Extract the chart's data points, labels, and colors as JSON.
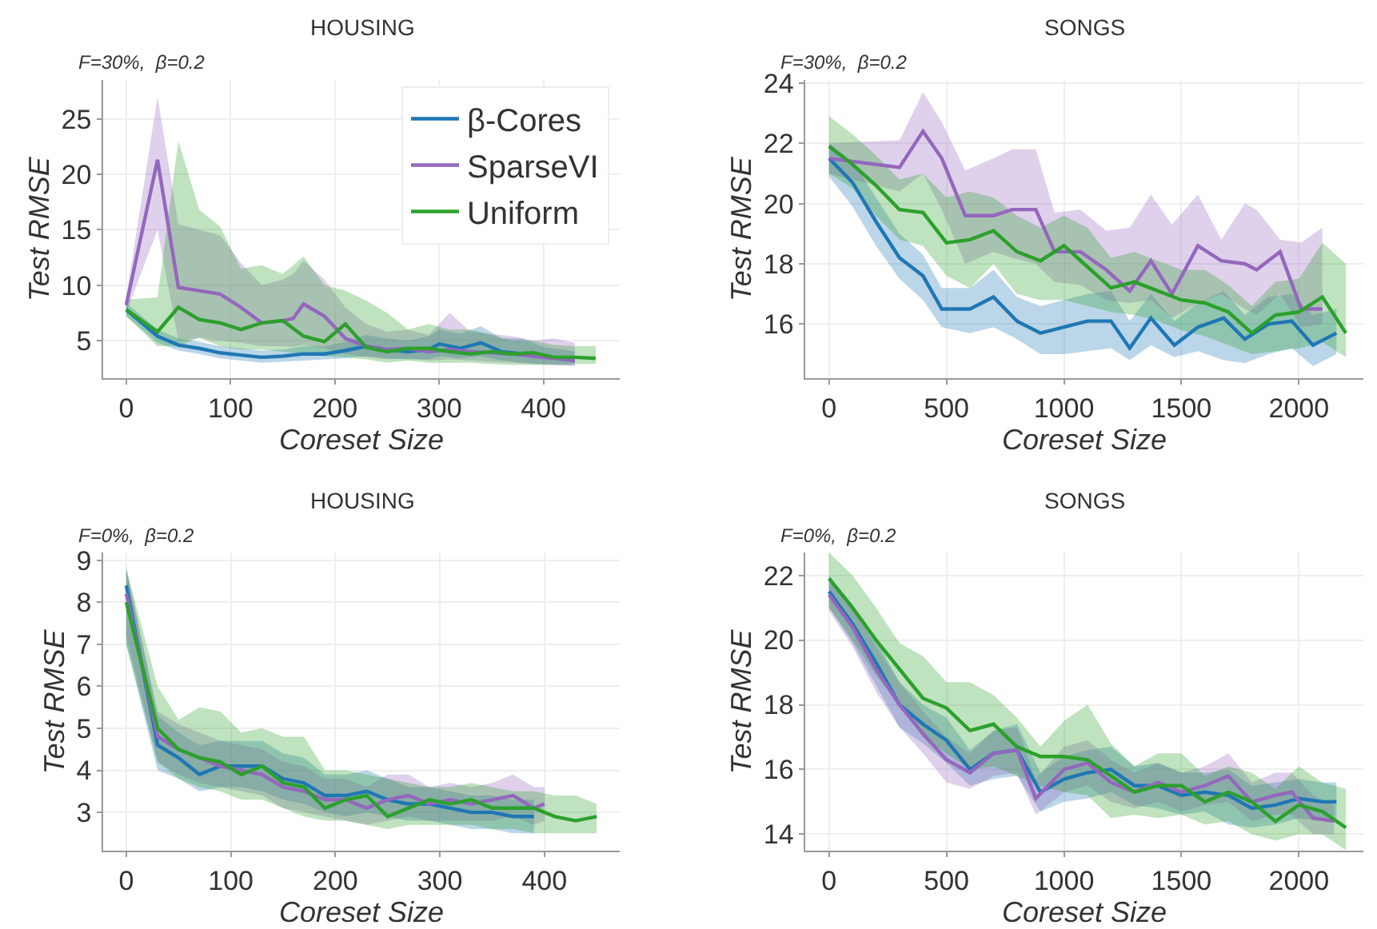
{
  "chart_data": [
    {
      "type": "line",
      "title": "HOUSING",
      "subtitle": "F=30%,  β=0.2",
      "xlabel": "Coreset Size",
      "ylabel": "Test RMSE",
      "xlim": [
        -22,
        473
      ],
      "ylim": [
        1.6,
        28.5
      ],
      "xticks": [
        0,
        100,
        200,
        300,
        400
      ],
      "yticks": [
        5,
        10,
        15,
        20,
        25
      ],
      "grid": true,
      "legend": "top right",
      "marker": "none",
      "line_style": "solid",
      "series": [
        {
          "name": "β-Cores",
          "color": "#1f77b4",
          "x": [
            0,
            30,
            50,
            70,
            90,
            110,
            130,
            150,
            170,
            190,
            210,
            230,
            250,
            270,
            290,
            300,
            320,
            340,
            360,
            380,
            400,
            420,
            430
          ],
          "values": [
            7.8,
            5.4,
            4.6,
            4.3,
            3.9,
            3.7,
            3.5,
            3.6,
            3.8,
            3.8,
            4.1,
            4.5,
            4.2,
            4.0,
            4.2,
            4.7,
            4.3,
            4.8,
            4.0,
            3.8,
            3.5,
            3.4,
            3.3
          ],
          "lower": [
            7.2,
            4.8,
            4.1,
            3.8,
            3.4,
            3.2,
            3.0,
            3.1,
            3.2,
            3.3,
            3.4,
            3.6,
            3.4,
            3.3,
            3.3,
            3.6,
            3.4,
            3.6,
            3.2,
            3.0,
            2.9,
            2.8,
            2.8
          ],
          "upper": [
            8.4,
            6.0,
            5.2,
            4.9,
            4.5,
            4.3,
            4.1,
            4.2,
            4.5,
            4.5,
            4.9,
            5.5,
            5.2,
            5.0,
            5.4,
            6.0,
            5.6,
            6.3,
            5.2,
            5.2,
            4.4,
            4.2,
            4.0
          ]
        },
        {
          "name": "SparseVI",
          "color": "#9467bd",
          "x": [
            0,
            30,
            50,
            70,
            90,
            110,
            130,
            150,
            160,
            170,
            190,
            210,
            230,
            250,
            270,
            290,
            310,
            330,
            350,
            370,
            390,
            410,
            430
          ],
          "values": [
            8.2,
            21.3,
            9.8,
            9.5,
            9.2,
            8.0,
            6.6,
            6.8,
            7.0,
            8.3,
            7.2,
            5.2,
            4.5,
            4.2,
            4.3,
            4.0,
            4.2,
            4.0,
            3.9,
            3.8,
            3.6,
            3.4,
            3.2
          ],
          "lower": [
            7.5,
            15.0,
            5.0,
            5.2,
            5.0,
            4.8,
            4.5,
            4.5,
            4.4,
            4.6,
            4.3,
            3.8,
            3.5,
            3.3,
            3.4,
            3.2,
            3.3,
            3.2,
            3.1,
            3.0,
            2.9,
            2.8,
            2.7
          ],
          "upper": [
            8.9,
            27.0,
            15.5,
            15.0,
            14.5,
            12.0,
            10.0,
            10.5,
            11.0,
            12.2,
            10.5,
            8.0,
            6.5,
            5.8,
            6.0,
            5.5,
            7.5,
            5.8,
            5.6,
            5.4,
            5.0,
            5.2,
            4.8
          ]
        },
        {
          "name": "Uniform",
          "color": "#2ca02c",
          "x": [
            0,
            30,
            50,
            70,
            90,
            110,
            130,
            150,
            170,
            190,
            210,
            230,
            250,
            270,
            290,
            310,
            330,
            350,
            370,
            390,
            410,
            430,
            450
          ],
          "values": [
            7.8,
            5.8,
            8.0,
            6.9,
            6.6,
            6.0,
            6.6,
            6.8,
            5.4,
            4.9,
            6.5,
            4.4,
            4.0,
            4.3,
            4.3,
            4.0,
            3.8,
            4.0,
            3.8,
            3.9,
            3.5,
            3.5,
            3.4
          ],
          "lower": [
            7.2,
            4.5,
            4.5,
            5.3,
            4.5,
            4.2,
            4.2,
            4.0,
            3.8,
            3.6,
            3.5,
            3.3,
            3.0,
            3.2,
            3.0,
            3.0,
            3.0,
            2.9,
            2.8,
            2.8,
            2.8,
            2.9,
            2.9
          ],
          "upper": [
            8.7,
            8.9,
            23.0,
            16.8,
            15.3,
            11.5,
            11.8,
            11.0,
            12.6,
            10.0,
            9.5,
            8.6,
            7.5,
            6.0,
            6.5,
            6.0,
            6.0,
            5.5,
            5.0,
            5.0,
            4.6,
            4.5,
            4.5
          ]
        }
      ]
    },
    {
      "type": "line",
      "title": "SONGS",
      "subtitle": "F=30%,  β=0.2",
      "xlabel": "Coreset Size",
      "ylabel": "Test RMSE",
      "xlim": [
        -100,
        2274
      ],
      "ylim": [
        14.2,
        24.1
      ],
      "xticks": [
        0,
        500,
        1000,
        1500,
        2000
      ],
      "yticks": [
        16,
        18,
        20,
        22,
        24
      ],
      "grid": true,
      "marker": "none",
      "line_style": "solid",
      "series": [
        {
          "color": "#1f77b4",
          "x": [
            0,
            100,
            200,
            300,
            400,
            480,
            600,
            700,
            800,
            900,
            1000,
            1100,
            1200,
            1280,
            1370,
            1470,
            1570,
            1680,
            1770,
            1870,
            1970,
            2060,
            2160
          ],
          "values": [
            21.5,
            20.7,
            19.4,
            18.2,
            17.6,
            16.5,
            16.5,
            16.9,
            16.1,
            15.7,
            15.9,
            16.1,
            16.1,
            15.2,
            16.2,
            15.3,
            15.9,
            16.2,
            15.5,
            16.0,
            16.1,
            15.3,
            15.7
          ],
          "lower": [
            20.9,
            19.9,
            18.6,
            17.5,
            16.8,
            15.9,
            15.7,
            15.9,
            15.5,
            15.0,
            15.0,
            15.1,
            15.2,
            14.8,
            15.3,
            14.9,
            15.1,
            14.8,
            14.7,
            15.0,
            15.2,
            14.6,
            15.0
          ],
          "upper": [
            22.0,
            21.4,
            20.2,
            19.0,
            18.3,
            17.2,
            17.2,
            17.8,
            16.9,
            16.6,
            16.8,
            17.0,
            17.1,
            16.1,
            17.0,
            16.1,
            16.7,
            17.1,
            16.3,
            16.9,
            17.0,
            16.3,
            16.5
          ]
        },
        {
          "color": "#9467bd",
          "x": [
            0,
            300,
            400,
            480,
            580,
            700,
            780,
            880,
            960,
            1070,
            1180,
            1280,
            1370,
            1460,
            1570,
            1670,
            1770,
            1820,
            1920,
            2010,
            2100
          ],
          "values": [
            21.5,
            21.2,
            22.4,
            21.5,
            19.6,
            19.6,
            19.8,
            19.8,
            18.4,
            18.4,
            17.8,
            17.1,
            18.1,
            17.0,
            18.6,
            18.1,
            18.0,
            17.8,
            18.4,
            16.5,
            16.5
          ],
          "lower": [
            21.0,
            20.4,
            21.0,
            19.8,
            18.0,
            18.4,
            18.2,
            18.0,
            17.4,
            17.3,
            16.8,
            16.7,
            16.8,
            16.2,
            16.7,
            17.0,
            16.5,
            16.3,
            17.0,
            15.9,
            16.0
          ],
          "upper": [
            22.0,
            22.1,
            23.7,
            22.7,
            21.1,
            21.5,
            21.8,
            21.8,
            19.7,
            19.8,
            19.1,
            19.2,
            20.3,
            19.3,
            20.3,
            18.8,
            20.0,
            19.8,
            18.8,
            18.7,
            19.2
          ]
        },
        {
          "color": "#2ca02c",
          "x": [
            0,
            100,
            200,
            300,
            400,
            500,
            600,
            700,
            800,
            900,
            1000,
            1100,
            1200,
            1300,
            1400,
            1500,
            1600,
            1700,
            1800,
            1900,
            2000,
            2100,
            2200
          ],
          "values": [
            21.9,
            21.3,
            20.6,
            19.8,
            19.7,
            18.7,
            18.8,
            19.1,
            18.4,
            18.1,
            18.6,
            17.9,
            17.2,
            17.4,
            17.1,
            16.8,
            16.7,
            16.4,
            15.7,
            16.3,
            16.4,
            16.9,
            15.7
          ],
          "lower": [
            21.0,
            20.5,
            19.6,
            18.8,
            18.6,
            17.6,
            17.2,
            18.0,
            17.0,
            16.8,
            16.8,
            16.6,
            16.4,
            16.3,
            16.1,
            15.8,
            15.6,
            15.3,
            15.0,
            15.1,
            15.2,
            15.4,
            14.9
          ],
          "upper": [
            22.9,
            22.3,
            21.6,
            20.8,
            21.0,
            20.2,
            20.4,
            20.2,
            19.6,
            19.2,
            19.6,
            19.2,
            18.2,
            18.4,
            18.1,
            17.8,
            17.8,
            17.3,
            16.6,
            17.4,
            17.5,
            18.7,
            18.0
          ]
        }
      ]
    },
    {
      "type": "line",
      "title": "HOUSING",
      "subtitle": "F=0%,  β=0.2",
      "xlabel": "Coreset Size",
      "ylabel": "Test RMSE",
      "xlim": [
        -22,
        472
      ],
      "ylim": [
        2.08,
        9.18
      ],
      "xticks": [
        0,
        100,
        200,
        300,
        400
      ],
      "yticks": [
        3,
        4,
        5,
        6,
        7,
        8,
        9
      ],
      "grid": true,
      "marker": "none",
      "line_style": "solid",
      "series": [
        {
          "color": "#1f77b4",
          "x": [
            0,
            30,
            50,
            70,
            90,
            110,
            130,
            150,
            170,
            190,
            210,
            230,
            250,
            270,
            290,
            310,
            330,
            350,
            370,
            390
          ],
          "values": [
            8.4,
            4.6,
            4.3,
            3.9,
            4.1,
            4.1,
            4.1,
            3.8,
            3.7,
            3.4,
            3.4,
            3.5,
            3.3,
            3.2,
            3.2,
            3.1,
            3.0,
            3.0,
            2.9,
            2.9
          ],
          "lower": [
            7.0,
            4.0,
            3.8,
            3.5,
            3.6,
            3.6,
            3.5,
            3.3,
            3.2,
            3.0,
            2.9,
            3.0,
            2.9,
            2.8,
            2.8,
            2.7,
            2.6,
            2.6,
            2.5,
            2.5
          ],
          "upper": [
            8.8,
            5.3,
            4.9,
            4.6,
            4.7,
            4.7,
            4.7,
            4.4,
            4.3,
            3.9,
            3.9,
            4.0,
            3.8,
            3.6,
            3.6,
            3.5,
            3.4,
            3.4,
            3.3,
            3.3
          ]
        },
        {
          "color": "#9467bd",
          "x": [
            0,
            30,
            50,
            70,
            90,
            110,
            130,
            150,
            170,
            190,
            210,
            230,
            250,
            270,
            290,
            310,
            330,
            350,
            370,
            390,
            400
          ],
          "values": [
            8.2,
            4.8,
            4.5,
            4.3,
            4.1,
            4.0,
            3.9,
            3.6,
            3.5,
            3.3,
            3.3,
            3.1,
            3.3,
            3.4,
            3.2,
            3.3,
            3.2,
            3.3,
            3.4,
            3.1,
            3.2
          ],
          "lower": [
            7.2,
            4.2,
            3.9,
            3.7,
            3.6,
            3.5,
            3.4,
            3.1,
            3.0,
            2.9,
            2.8,
            2.7,
            2.8,
            2.9,
            2.8,
            2.8,
            2.8,
            2.8,
            2.9,
            2.7,
            2.8
          ],
          "upper": [
            8.8,
            5.4,
            5.1,
            4.9,
            4.7,
            4.6,
            4.5,
            4.2,
            4.1,
            3.8,
            3.8,
            3.6,
            3.9,
            3.9,
            3.6,
            3.7,
            3.6,
            3.7,
            3.9,
            3.6,
            3.6
          ]
        },
        {
          "color": "#2ca02c",
          "x": [
            0,
            30,
            50,
            70,
            90,
            110,
            130,
            150,
            170,
            190,
            210,
            230,
            250,
            270,
            290,
            310,
            330,
            350,
            370,
            390,
            410,
            430,
            450
          ],
          "values": [
            8.0,
            5.0,
            4.5,
            4.3,
            4.2,
            3.9,
            4.1,
            3.7,
            3.6,
            3.1,
            3.3,
            3.4,
            2.9,
            3.1,
            3.3,
            3.2,
            3.3,
            3.1,
            3.1,
            3.1,
            2.9,
            2.8,
            2.9
          ],
          "lower": [
            7.0,
            4.2,
            3.8,
            3.6,
            3.5,
            3.3,
            3.3,
            3.1,
            2.9,
            2.8,
            2.8,
            2.7,
            2.6,
            2.7,
            2.7,
            2.7,
            2.7,
            2.6,
            2.6,
            2.5,
            2.5,
            2.5,
            2.5
          ],
          "upper": [
            8.8,
            6.0,
            5.2,
            5.5,
            5.4,
            4.9,
            5.0,
            4.8,
            4.8,
            4.0,
            4.0,
            3.9,
            3.8,
            3.7,
            3.6,
            3.6,
            3.7,
            3.6,
            3.5,
            3.5,
            3.4,
            3.4,
            3.2
          ]
        }
      ]
    },
    {
      "type": "line",
      "title": "SONGS",
      "subtitle": "F=0%,  β=0.2",
      "xlabel": "Coreset Size",
      "ylabel": "Test RMSE",
      "xlim": [
        -100,
        2274
      ],
      "ylim": [
        13.48,
        22.7
      ],
      "xticks": [
        0,
        500,
        1000,
        1500,
        2000
      ],
      "yticks": [
        14,
        16,
        18,
        20,
        22
      ],
      "grid": true,
      "marker": "none",
      "line_style": "solid",
      "series": [
        {
          "color": "#1f77b4",
          "x": [
            0,
            100,
            200,
            300,
            400,
            500,
            600,
            700,
            800,
            900,
            1000,
            1100,
            1200,
            1300,
            1400,
            1500,
            1600,
            1700,
            1800,
            1900,
            2000,
            2100,
            2160
          ],
          "values": [
            21.5,
            20.5,
            19.3,
            18.0,
            17.4,
            16.9,
            16.0,
            16.5,
            16.6,
            15.3,
            15.7,
            15.9,
            16.0,
            15.5,
            15.5,
            15.2,
            15.3,
            15.2,
            14.8,
            14.9,
            15.1,
            15.0,
            15.0
          ],
          "lower": [
            21.0,
            19.9,
            18.6,
            17.3,
            16.8,
            16.2,
            15.5,
            15.7,
            15.8,
            14.7,
            15.0,
            15.1,
            15.3,
            14.9,
            14.8,
            14.6,
            14.7,
            14.3,
            14.2,
            14.3,
            14.5,
            14.4,
            14.4
          ],
          "upper": [
            22.0,
            21.1,
            20.0,
            18.7,
            18.0,
            17.6,
            16.6,
            17.2,
            17.4,
            15.9,
            16.4,
            16.6,
            16.7,
            16.1,
            16.2,
            15.9,
            15.9,
            16.0,
            15.5,
            15.6,
            15.7,
            15.6,
            15.6
          ]
        },
        {
          "color": "#9467bd",
          "x": [
            0,
            100,
            200,
            300,
            400,
            500,
            600,
            700,
            800,
            880,
            1000,
            1100,
            1200,
            1300,
            1400,
            1500,
            1600,
            1700,
            1800,
            1900,
            1970,
            2060,
            2150
          ],
          "values": [
            21.4,
            20.4,
            19.1,
            18.0,
            17.1,
            16.3,
            15.9,
            16.5,
            16.6,
            15.1,
            16.0,
            16.2,
            15.6,
            15.3,
            15.6,
            15.3,
            15.5,
            15.8,
            15.0,
            15.2,
            15.3,
            14.5,
            14.4
          ],
          "lower": [
            20.9,
            19.8,
            18.4,
            17.3,
            16.5,
            15.6,
            15.4,
            15.8,
            15.9,
            14.6,
            15.3,
            15.5,
            15.0,
            14.8,
            15.0,
            14.7,
            14.9,
            15.0,
            14.4,
            14.6,
            14.6,
            14.0,
            14.0
          ],
          "upper": [
            21.9,
            21.0,
            19.8,
            18.7,
            17.8,
            17.0,
            16.5,
            17.2,
            17.3,
            15.7,
            16.7,
            16.9,
            16.3,
            15.9,
            16.2,
            15.9,
            16.1,
            16.5,
            15.6,
            15.9,
            15.9,
            15.2,
            14.9
          ]
        },
        {
          "color": "#2ca02c",
          "x": [
            0,
            100,
            200,
            300,
            400,
            500,
            600,
            700,
            800,
            900,
            1000,
            1100,
            1200,
            1300,
            1400,
            1500,
            1600,
            1700,
            1800,
            1900,
            2000,
            2100,
            2200
          ],
          "values": [
            21.9,
            21.0,
            20.0,
            19.1,
            18.2,
            17.9,
            17.2,
            17.4,
            16.7,
            16.4,
            16.4,
            16.3,
            15.8,
            15.3,
            15.5,
            15.5,
            15.0,
            15.3,
            15.0,
            14.4,
            14.9,
            14.7,
            14.2
          ],
          "lower": [
            21.0,
            20.0,
            18.9,
            18.0,
            17.0,
            16.5,
            16.0,
            16.1,
            15.8,
            15.5,
            15.3,
            15.2,
            14.5,
            14.6,
            14.5,
            14.6,
            14.3,
            14.4,
            14.0,
            13.8,
            14.0,
            14.0,
            13.5
          ],
          "upper": [
            22.7,
            22.0,
            21.0,
            19.9,
            19.5,
            18.7,
            18.7,
            18.3,
            17.6,
            16.7,
            17.5,
            18.0,
            16.8,
            16.1,
            16.5,
            16.5,
            15.8,
            16.1,
            15.9,
            15.4,
            16.1,
            15.6,
            15.4
          ]
        }
      ]
    }
  ]
}
